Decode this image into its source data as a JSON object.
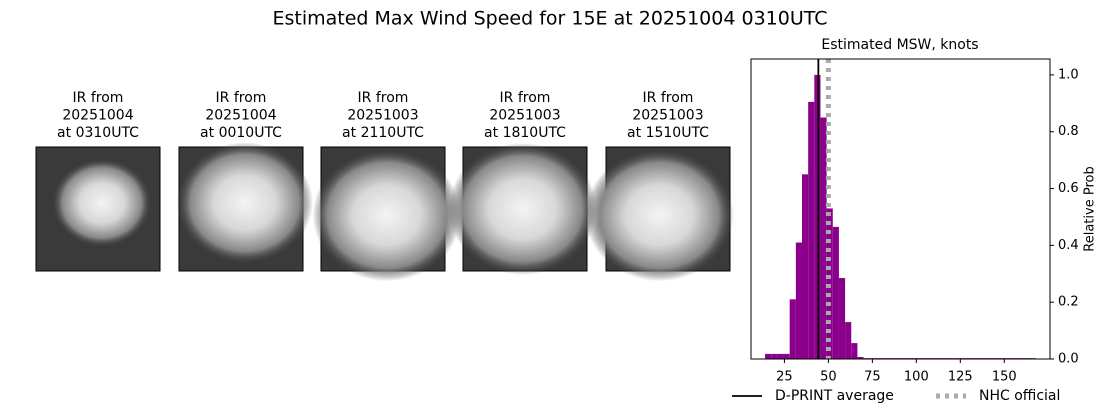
{
  "title": "Estimated Max Wind Speed for 15E at 20251004 0310UTC",
  "panels": [
    {
      "lines": [
        "IR from",
        "20251004",
        "at 0310UTC"
      ]
    },
    {
      "lines": [
        "IR from",
        "20251004",
        "at 0010UTC"
      ]
    },
    {
      "lines": [
        "IR from",
        "20251003",
        "at 2110UTC"
      ]
    },
    {
      "lines": [
        "IR from",
        "20251003",
        "at 1810UTC"
      ]
    },
    {
      "lines": [
        "IR from",
        "20251003",
        "at 1510UTC"
      ]
    }
  ],
  "chart_data": {
    "type": "histogram",
    "title": "Estimated MSW, knots",
    "y_label": "Relative Prob",
    "bins": [
      14,
      17.5,
      21,
      24.5,
      28,
      31.5,
      35,
      38.5,
      42,
      45.5,
      49,
      52.5,
      56,
      59.5,
      63,
      66.5,
      70,
      168
    ],
    "values": [
      0.018,
      0.018,
      0.018,
      0.018,
      0.21,
      0.41,
      0.65,
      0.905,
      1.0,
      0.85,
      0.53,
      0.465,
      0.285,
      0.13,
      0.056,
      0.007,
      0.003
    ],
    "color": "#8b008b",
    "xlim": [
      6,
      176
    ],
    "ylim": [
      0,
      1.056
    ],
    "xticks": [
      25,
      50,
      75,
      100,
      125,
      150
    ],
    "yticks": [
      {
        "value": 0,
        "label": "0.0"
      },
      0.2,
      0.4,
      0.6,
      0.8,
      {
        "value": 1,
        "label": "1.0"
      }
    ],
    "y_axis_side": "right",
    "reference_lines": [
      {
        "name": "D-PRINT average",
        "value": 44.3,
        "color": "#000000",
        "style": "solid"
      },
      {
        "name": "NHC official",
        "value": 50,
        "color": "#aaaaaa",
        "style": "dotted"
      }
    ]
  }
}
